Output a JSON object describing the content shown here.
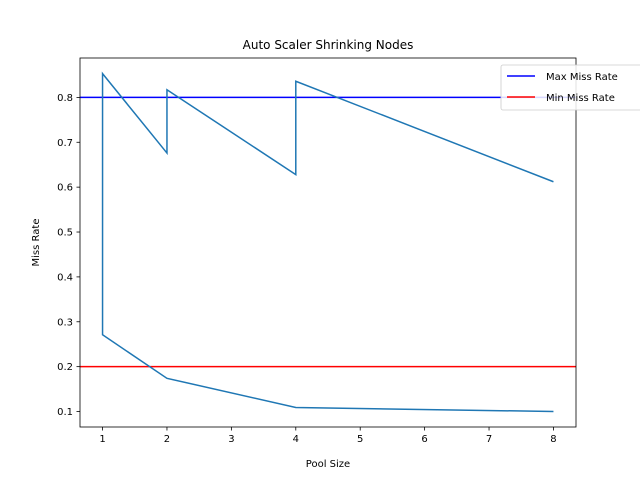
{
  "chart_data": {
    "type": "line",
    "title": "Auto Scaler Shrinking Nodes",
    "xlabel": "Pool Size",
    "ylabel": "Miss Rate",
    "xlim": [
      0.65,
      8.35
    ],
    "ylim": [
      0.0655,
      0.8878
    ],
    "xticks": [
      1,
      2,
      3,
      4,
      5,
      6,
      7,
      8
    ],
    "yticks": [
      0.1,
      0.2,
      0.3,
      0.4,
      0.5,
      0.6,
      0.7,
      0.8
    ],
    "grid": false,
    "legend": {
      "placement": "top-right"
    },
    "series": [
      {
        "color": "#1f77b4",
        "points": [
          [
            8,
            0.1
          ],
          [
            4,
            0.109
          ],
          [
            2,
            0.174
          ],
          [
            1,
            0.271
          ],
          [
            1,
            0.853
          ],
          [
            2,
            0.676
          ],
          [
            2,
            0.817
          ],
          [
            4,
            0.628
          ],
          [
            4,
            0.836
          ],
          [
            8,
            0.612
          ]
        ]
      }
    ],
    "hlines": [
      {
        "name": "Max Miss Rate",
        "y": 0.8,
        "color": "#0000ff"
      },
      {
        "name": "Min Miss Rate",
        "y": 0.2,
        "color": "#ff0000"
      }
    ]
  }
}
